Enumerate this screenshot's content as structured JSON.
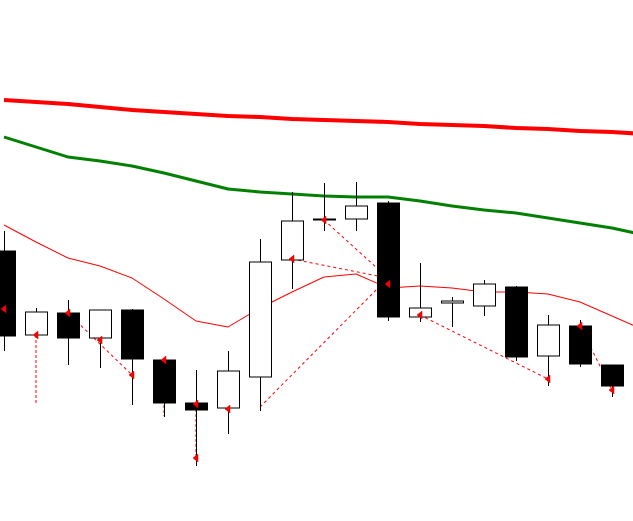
{
  "chart_data": {
    "type": "candlestick",
    "title": "",
    "xlabel": "",
    "ylabel": "",
    "grid": false,
    "ylim": [
      0,
      521
    ],
    "candles": [
      {
        "open": 270,
        "high": 290,
        "low": 170,
        "close": 185,
        "bull": false
      },
      {
        "open": 186,
        "high": 213,
        "low": 185,
        "close": 209,
        "bull": true
      },
      {
        "open": 208,
        "high": 221,
        "low": 156,
        "close": 183,
        "bull": false
      },
      {
        "open": 183,
        "high": 211,
        "low": 153,
        "close": 211,
        "bull": true
      },
      {
        "open": 211,
        "high": 212,
        "low": 116,
        "close": 162,
        "bull": false
      },
      {
        "open": 161,
        "high": 163,
        "low": 104,
        "close": 118,
        "bull": false
      },
      {
        "open": 118,
        "high": 151,
        "low": 55,
        "close": 111,
        "bull": false
      },
      {
        "open": 113,
        "high": 170,
        "low": 87,
        "close": 150,
        "bull": true
      },
      {
        "open": 144,
        "high": 282,
        "low": 110,
        "close": 259,
        "bull": true
      },
      {
        "open": 261,
        "high": 329,
        "low": 232,
        "close": 300,
        "bull": true
      },
      {
        "open": 301,
        "high": 338,
        "low": 290,
        "close": 302,
        "bull": true
      },
      {
        "open": 302,
        "high": 339,
        "low": 290,
        "close": 315,
        "bull": true
      },
      {
        "open": 318,
        "high": 320,
        "low": 200,
        "close": 204,
        "bull": false
      },
      {
        "open": 204,
        "high": 258,
        "low": 199,
        "close": 213,
        "bull": true
      },
      {
        "open": 218,
        "high": 224,
        "low": 194,
        "close": 220,
        "bull": true
      },
      {
        "open": 215,
        "high": 241,
        "low": 205,
        "close": 237,
        "bull": true
      },
      {
        "open": 234,
        "high": 235,
        "low": 160,
        "close": 164,
        "bull": false
      },
      {
        "open": 165,
        "high": 206,
        "low": 135,
        "close": 196,
        "bull": true
      },
      {
        "open": 195,
        "high": 201,
        "low": 154,
        "close": 157,
        "bull": false
      },
      {
        "open": 156,
        "high": 156,
        "low": 124,
        "close": 135,
        "bull": false
      }
    ],
    "series": [
      {
        "color": "#ff0000",
        "values": [
          421,
          419,
          417,
          414,
          411,
          409,
          407,
          405,
          404,
          402,
          401,
          400,
          399,
          397,
          396,
          395,
          393,
          392,
          390,
          389,
          387
        ]
      },
      {
        "color": "#008000",
        "values": [
          384,
          374,
          364,
          360,
          355,
          348,
          340,
          332,
          329,
          327,
          325,
          324,
          324,
          320,
          315,
          311,
          308,
          303,
          298,
          293,
          286
        ]
      },
      {
        "color": "#ff0000",
        "values": [
          296,
          279,
          263,
          255,
          243,
          222,
          200,
          194,
          213,
          229,
          244,
          247,
          233,
          235,
          233,
          229,
          229,
          227,
          219,
          205,
          191
        ]
      }
    ],
    "dashed_links": [
      [
        2,
        208,
        4,
        146
      ],
      [
        8,
        114,
        12,
        243
      ],
      [
        9,
        262,
        12,
        243
      ],
      [
        10,
        301,
        12,
        243
      ],
      [
        13,
        206,
        17,
        142
      ],
      [
        18,
        195,
        19,
        131
      ]
    ],
    "down_arrows": [
      {
        "i": 1,
        "from": 186,
        "to": 117
      },
      {
        "i": 5,
        "from": 161,
        "to": 105
      },
      {
        "i": 6,
        "from": 112,
        "to": 63
      }
    ],
    "markers": [
      {
        "i": 0,
        "y": 212
      },
      {
        "i": 1,
        "y": 186
      },
      {
        "i": 2,
        "y": 208
      },
      {
        "i": 3,
        "y": 181
      },
      {
        "i": 4,
        "y": 146
      },
      {
        "i": 5,
        "y": 161
      },
      {
        "i": 6,
        "y": 117
      },
      {
        "i": 6,
        "y": 63
      },
      {
        "i": 7,
        "y": 112
      },
      {
        "i": 9,
        "y": 262
      },
      {
        "i": 10,
        "y": 301
      },
      {
        "i": 12,
        "y": 237
      },
      {
        "i": 13,
        "y": 206
      },
      {
        "i": 17,
        "y": 142
      },
      {
        "i": 18,
        "y": 195
      },
      {
        "i": 19,
        "y": 131
      }
    ]
  }
}
